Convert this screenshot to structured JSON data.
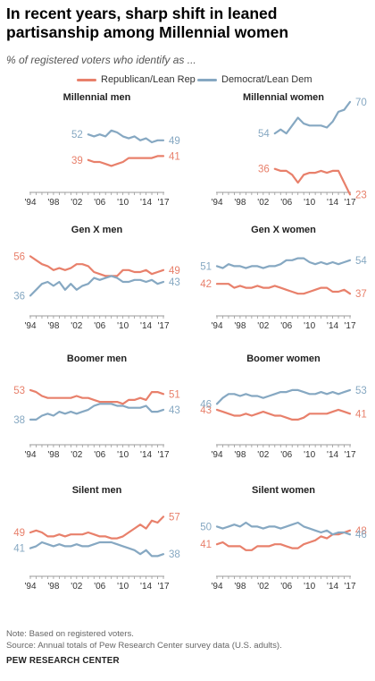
{
  "title": "In recent years, sharp shift in leaned partisanship among Millennial women",
  "subtitle": "% of registered voters who identify as ...",
  "legend": {
    "rep": "Republican/Lean Rep",
    "dem": "Democrat/Lean Dem"
  },
  "colors": {
    "rep": "#e8806b",
    "dem": "#86a8c2",
    "axis": "#999999",
    "label": "#333333"
  },
  "note": "Note: Based on registered voters.",
  "source": "Source: Annual totals of Pew Research Center survey data (U.S. adults).",
  "org": "PEW RESEARCH CENTER",
  "chart_data": [
    {
      "type": "line",
      "title": "Millennial men",
      "x_ticks": [
        "'94",
        "'98",
        "'02",
        "'06",
        "'10",
        "'14",
        "'17"
      ],
      "xlim": [
        1994,
        2017
      ],
      "ylim": [
        0,
        100
      ],
      "series": [
        {
          "name": "Republican/Lean Rep",
          "x": [
            2004,
            2005,
            2006,
            2007,
            2008,
            2009,
            2010,
            2011,
            2012,
            2013,
            2014,
            2015,
            2016,
            2017
          ],
          "values": [
            39,
            38,
            38,
            37,
            36,
            37,
            38,
            40,
            40,
            40,
            40,
            40,
            41,
            41
          ],
          "start_label": "39",
          "end_label": "41"
        },
        {
          "name": "Democrat/Lean Dem",
          "x": [
            2004,
            2005,
            2006,
            2007,
            2008,
            2009,
            2010,
            2011,
            2012,
            2013,
            2014,
            2015,
            2016,
            2017
          ],
          "values": [
            52,
            51,
            52,
            51,
            54,
            53,
            51,
            50,
            51,
            49,
            50,
            48,
            49,
            49
          ],
          "start_label": "52",
          "end_label": "49"
        }
      ]
    },
    {
      "type": "line",
      "title": "Millennial women",
      "x_ticks": [
        "'94",
        "'98",
        "'02",
        "'06",
        "'10",
        "'14",
        "'17"
      ],
      "xlim": [
        1994,
        2017
      ],
      "ylim": [
        0,
        100
      ],
      "series": [
        {
          "name": "Republican/Lean Rep",
          "x": [
            2004,
            2005,
            2006,
            2007,
            2008,
            2009,
            2010,
            2011,
            2012,
            2013,
            2014,
            2015,
            2016,
            2017
          ],
          "values": [
            36,
            35,
            35,
            33,
            29,
            33,
            34,
            34,
            35,
            34,
            35,
            35,
            29,
            23
          ],
          "start_label": "36",
          "end_label": "23"
        },
        {
          "name": "Democrat/Lean Dem",
          "x": [
            2004,
            2005,
            2006,
            2007,
            2008,
            2009,
            2010,
            2011,
            2012,
            2013,
            2014,
            2015,
            2016,
            2017
          ],
          "values": [
            54,
            56,
            54,
            58,
            62,
            59,
            58,
            58,
            58,
            57,
            60,
            65,
            66,
            70
          ],
          "start_label": "54",
          "end_label": "70"
        }
      ]
    },
    {
      "type": "line",
      "title": "Gen X men",
      "x_ticks": [
        "'94",
        "'98",
        "'02",
        "'06",
        "'10",
        "'14",
        "'17"
      ],
      "xlim": [
        1994,
        2017
      ],
      "ylim": [
        0,
        100
      ],
      "series": [
        {
          "name": "Republican/Lean Rep",
          "x": [
            1994,
            1995,
            1996,
            1997,
            1998,
            1999,
            2000,
            2001,
            2002,
            2003,
            2004,
            2005,
            2006,
            2007,
            2008,
            2009,
            2010,
            2011,
            2012,
            2013,
            2014,
            2015,
            2016,
            2017
          ],
          "values": [
            56,
            54,
            52,
            51,
            49,
            50,
            49,
            50,
            52,
            52,
            51,
            48,
            47,
            46,
            46,
            46,
            49,
            49,
            48,
            48,
            49,
            47,
            48,
            49
          ],
          "start_label": "56",
          "end_label": "49"
        },
        {
          "name": "Democrat/Lean Dem",
          "x": [
            1994,
            1995,
            1996,
            1997,
            1998,
            1999,
            2000,
            2001,
            2002,
            2003,
            2004,
            2005,
            2006,
            2007,
            2008,
            2009,
            2010,
            2011,
            2012,
            2013,
            2014,
            2015,
            2016,
            2017
          ],
          "values": [
            36,
            39,
            42,
            43,
            41,
            43,
            39,
            42,
            39,
            41,
            42,
            45,
            44,
            45,
            46,
            45,
            43,
            43,
            44,
            44,
            43,
            44,
            42,
            43
          ],
          "start_label": "36",
          "end_label": "43"
        }
      ]
    },
    {
      "type": "line",
      "title": "Gen X women",
      "x_ticks": [
        "'94",
        "'98",
        "'02",
        "'06",
        "'10",
        "'14",
        "'17"
      ],
      "xlim": [
        1994,
        2017
      ],
      "ylim": [
        0,
        100
      ],
      "series": [
        {
          "name": "Republican/Lean Rep",
          "x": [
            1994,
            1995,
            1996,
            1997,
            1998,
            1999,
            2000,
            2001,
            2002,
            2003,
            2004,
            2005,
            2006,
            2007,
            2008,
            2009,
            2010,
            2011,
            2012,
            2013,
            2014,
            2015,
            2016,
            2017
          ],
          "values": [
            42,
            42,
            42,
            40,
            41,
            40,
            40,
            41,
            40,
            40,
            41,
            40,
            39,
            38,
            37,
            37,
            38,
            39,
            40,
            40,
            38,
            38,
            39,
            37
          ],
          "start_label": "42",
          "end_label": "37"
        },
        {
          "name": "Democrat/Lean Dem",
          "x": [
            1994,
            1995,
            1996,
            1997,
            1998,
            1999,
            2000,
            2001,
            2002,
            2003,
            2004,
            2005,
            2006,
            2007,
            2008,
            2009,
            2010,
            2011,
            2012,
            2013,
            2014,
            2015,
            2016,
            2017
          ],
          "values": [
            51,
            50,
            52,
            51,
            51,
            50,
            51,
            51,
            50,
            51,
            51,
            52,
            54,
            54,
            55,
            55,
            53,
            52,
            53,
            52,
            53,
            52,
            53,
            54
          ],
          "start_label": "51",
          "end_label": "54"
        }
      ]
    },
    {
      "type": "line",
      "title": "Boomer men",
      "x_ticks": [
        "'94",
        "'98",
        "'02",
        "'06",
        "'10",
        "'14",
        "'17"
      ],
      "xlim": [
        1994,
        2017
      ],
      "ylim": [
        0,
        100
      ],
      "series": [
        {
          "name": "Republican/Lean Rep",
          "x": [
            1994,
            1995,
            1996,
            1997,
            1998,
            1999,
            2000,
            2001,
            2002,
            2003,
            2004,
            2005,
            2006,
            2007,
            2008,
            2009,
            2010,
            2011,
            2012,
            2013,
            2014,
            2015,
            2016,
            2017
          ],
          "values": [
            53,
            52,
            50,
            49,
            49,
            49,
            49,
            49,
            50,
            49,
            49,
            48,
            47,
            47,
            47,
            47,
            46,
            48,
            48,
            49,
            48,
            52,
            52,
            51
          ],
          "start_label": "53",
          "end_label": "51"
        },
        {
          "name": "Democrat/Lean Dem",
          "x": [
            1994,
            1995,
            1996,
            1997,
            1998,
            1999,
            2000,
            2001,
            2002,
            2003,
            2004,
            2005,
            2006,
            2007,
            2008,
            2009,
            2010,
            2011,
            2012,
            2013,
            2014,
            2015,
            2016,
            2017
          ],
          "values": [
            38,
            38,
            40,
            41,
            40,
            42,
            41,
            42,
            41,
            42,
            43,
            45,
            46,
            46,
            46,
            45,
            45,
            44,
            44,
            44,
            45,
            42,
            42,
            43
          ],
          "start_label": "38",
          "end_label": "43"
        }
      ]
    },
    {
      "type": "line",
      "title": "Boomer women",
      "x_ticks": [
        "'94",
        "'98",
        "'02",
        "'06",
        "'10",
        "'14",
        "'17"
      ],
      "xlim": [
        1994,
        2017
      ],
      "ylim": [
        0,
        100
      ],
      "series": [
        {
          "name": "Republican/Lean Rep",
          "x": [
            1994,
            1995,
            1996,
            1997,
            1998,
            1999,
            2000,
            2001,
            2002,
            2003,
            2004,
            2005,
            2006,
            2007,
            2008,
            2009,
            2010,
            2011,
            2012,
            2013,
            2014,
            2015,
            2016,
            2017
          ],
          "values": [
            43,
            42,
            41,
            40,
            40,
            41,
            40,
            41,
            42,
            41,
            40,
            40,
            39,
            38,
            38,
            39,
            41,
            41,
            41,
            41,
            42,
            43,
            42,
            41
          ],
          "start_label": "43",
          "end_label": "41"
        },
        {
          "name": "Democrat/Lean Dem",
          "x": [
            1994,
            1995,
            1996,
            1997,
            1998,
            1999,
            2000,
            2001,
            2002,
            2003,
            2004,
            2005,
            2006,
            2007,
            2008,
            2009,
            2010,
            2011,
            2012,
            2013,
            2014,
            2015,
            2016,
            2017
          ],
          "values": [
            46,
            49,
            51,
            51,
            50,
            51,
            50,
            50,
            49,
            50,
            51,
            52,
            52,
            53,
            53,
            52,
            51,
            51,
            52,
            51,
            52,
            51,
            52,
            53
          ],
          "start_label": "46",
          "end_label": "53"
        }
      ]
    },
    {
      "type": "line",
      "title": "Silent men",
      "x_ticks": [
        "'94",
        "'98",
        "'02",
        "'06",
        "'10",
        "'14",
        "'17"
      ],
      "xlim": [
        1994,
        2017
      ],
      "ylim": [
        0,
        100
      ],
      "series": [
        {
          "name": "Republican/Lean Rep",
          "x": [
            1994,
            1995,
            1996,
            1997,
            1998,
            1999,
            2000,
            2001,
            2002,
            2003,
            2004,
            2005,
            2006,
            2007,
            2008,
            2009,
            2010,
            2011,
            2012,
            2013,
            2014,
            2015,
            2016,
            2017
          ],
          "values": [
            49,
            50,
            49,
            47,
            47,
            48,
            47,
            48,
            48,
            48,
            49,
            48,
            47,
            47,
            46,
            46,
            47,
            49,
            51,
            53,
            51,
            55,
            54,
            57
          ],
          "start_label": "49",
          "end_label": "57"
        },
        {
          "name": "Democrat/Lean Dem",
          "x": [
            1994,
            1995,
            1996,
            1997,
            1998,
            1999,
            2000,
            2001,
            2002,
            2003,
            2004,
            2005,
            2006,
            2007,
            2008,
            2009,
            2010,
            2011,
            2012,
            2013,
            2014,
            2015,
            2016,
            2017
          ],
          "values": [
            41,
            42,
            44,
            43,
            42,
            43,
            42,
            42,
            43,
            42,
            42,
            43,
            44,
            44,
            44,
            43,
            42,
            41,
            40,
            38,
            40,
            37,
            37,
            38
          ],
          "start_label": "41",
          "end_label": "38"
        }
      ]
    },
    {
      "type": "line",
      "title": "Silent women",
      "x_ticks": [
        "'94",
        "'98",
        "'02",
        "'06",
        "'10",
        "'14",
        "'17"
      ],
      "xlim": [
        1994,
        2017
      ],
      "ylim": [
        0,
        100
      ],
      "series": [
        {
          "name": "Republican/Lean Rep",
          "x": [
            1994,
            1995,
            1996,
            1997,
            1998,
            1999,
            2000,
            2001,
            2002,
            2003,
            2004,
            2005,
            2006,
            2007,
            2008,
            2009,
            2010,
            2011,
            2012,
            2013,
            2014,
            2015,
            2016,
            2017
          ],
          "values": [
            41,
            42,
            40,
            40,
            40,
            38,
            38,
            40,
            40,
            40,
            41,
            41,
            40,
            39,
            39,
            41,
            42,
            43,
            45,
            44,
            46,
            46,
            47,
            48
          ],
          "start_label": "41",
          "end_label": "48"
        },
        {
          "name": "Democrat/Lean Dem",
          "x": [
            1994,
            1995,
            1996,
            1997,
            1998,
            1999,
            2000,
            2001,
            2002,
            2003,
            2004,
            2005,
            2006,
            2007,
            2008,
            2009,
            2010,
            2011,
            2012,
            2013,
            2014,
            2015,
            2016,
            2017
          ],
          "values": [
            50,
            49,
            50,
            51,
            50,
            52,
            50,
            50,
            49,
            50,
            50,
            49,
            50,
            51,
            52,
            50,
            49,
            48,
            47,
            48,
            46,
            47,
            47,
            46
          ],
          "start_label": "50",
          "end_label": "46"
        }
      ]
    }
  ]
}
